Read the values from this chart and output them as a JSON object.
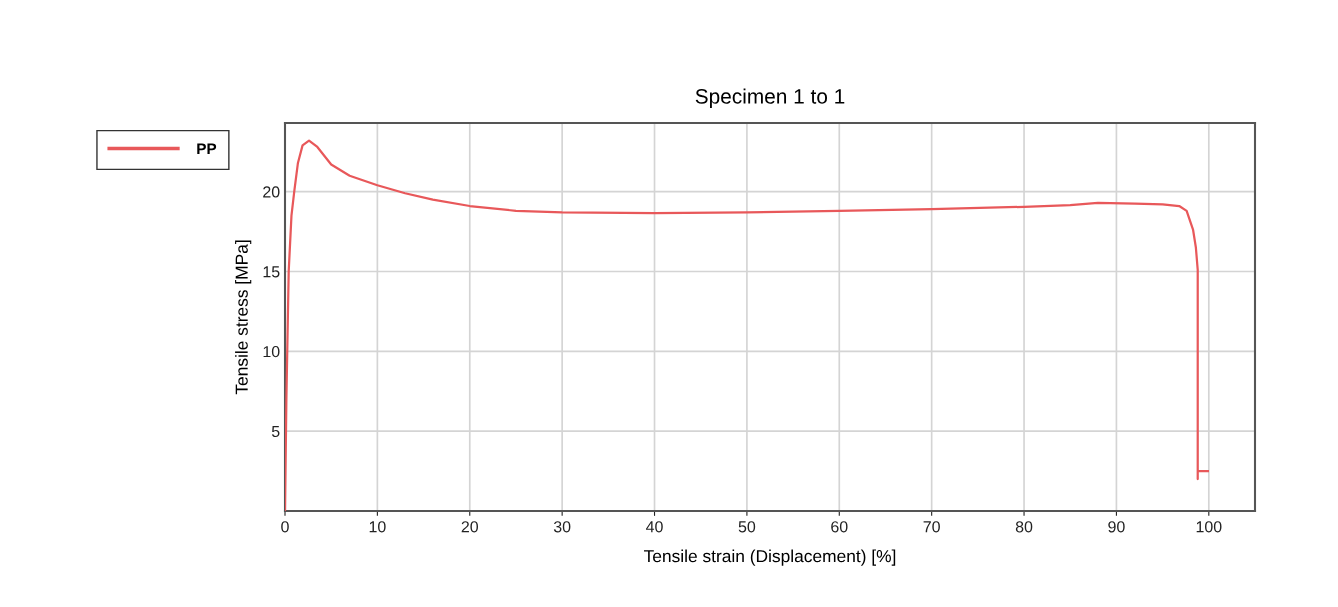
{
  "chart_data": {
    "type": "line",
    "title": "Specimen 1 to 1",
    "xlabel": "Tensile strain (Displacement) [%]",
    "ylabel": "Tensile stress [MPa]",
    "xlim": [
      0,
      105
    ],
    "ylim": [
      0,
      24.3
    ],
    "xticks": [
      0,
      10,
      20,
      30,
      40,
      50,
      60,
      70,
      80,
      90,
      100
    ],
    "yticks": [
      5,
      10,
      15,
      20
    ],
    "grid": true,
    "legend": "top left",
    "marker": "none",
    "line_style": "solid",
    "series": [
      {
        "name": "PP",
        "color": "#e8585a",
        "x": [
          0,
          0.15,
          0.4,
          0.7,
          1.0,
          1.4,
          1.9,
          2.6,
          3.5,
          5,
          7,
          10,
          13,
          16,
          20,
          25,
          30,
          40,
          50,
          60,
          70,
          80,
          85,
          88,
          92,
          95,
          96.8,
          97.6,
          98.3,
          98.6,
          98.8,
          98.8,
          98.8,
          98.8,
          99.9
        ],
        "values": [
          0,
          7,
          15,
          18.5,
          20,
          21.8,
          22.9,
          23.2,
          22.8,
          21.7,
          21.0,
          20.4,
          19.9,
          19.5,
          19.1,
          18.8,
          18.7,
          18.65,
          18.7,
          18.8,
          18.9,
          19.05,
          19.15,
          19.3,
          19.25,
          19.2,
          19.1,
          18.8,
          17.6,
          16.5,
          15.1,
          8,
          2.0,
          2.5,
          2.5
        ]
      }
    ]
  }
}
